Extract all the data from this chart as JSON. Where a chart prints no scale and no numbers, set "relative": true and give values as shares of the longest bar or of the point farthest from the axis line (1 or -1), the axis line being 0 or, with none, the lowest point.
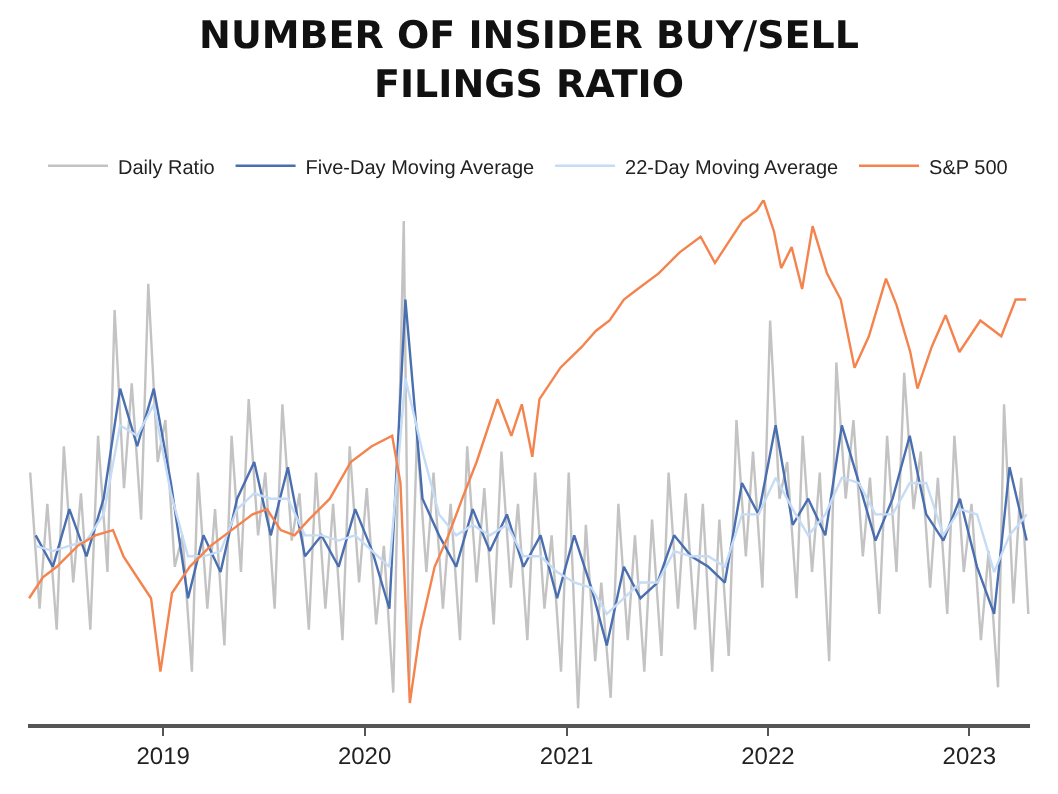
{
  "chart_data": {
    "type": "line",
    "title": "NUMBER OF INSIDER BUY/SELL FILINGS RATIO",
    "relative": true,
    "legend": "top",
    "marker": "none",
    "line_style": "solid",
    "xlim": [
      "2018-05-01",
      "2023-04-21"
    ],
    "xticks": [
      "2019",
      "2020",
      "2021",
      "2022",
      "2023"
    ],
    "x": [
      "2018-05-15",
      "2018-06-15",
      "2018-07-15",
      "2018-08-15",
      "2018-09-15",
      "2018-10-15",
      "2018-11-15",
      "2018-12-15",
      "2019-01-15",
      "2019-02-15",
      "2019-03-15",
      "2019-04-15",
      "2019-05-15",
      "2019-06-15",
      "2019-07-15",
      "2019-08-15",
      "2019-09-15",
      "2019-10-15",
      "2019-11-15",
      "2019-12-15",
      "2020-01-15",
      "2020-02-15",
      "2020-03-15",
      "2020-04-15",
      "2020-05-15",
      "2020-06-15",
      "2020-07-15",
      "2020-08-15",
      "2020-09-15",
      "2020-10-15",
      "2020-11-15",
      "2020-12-15",
      "2021-01-15",
      "2021-02-15",
      "2021-03-15",
      "2021-04-15",
      "2021-05-15",
      "2021-06-15",
      "2021-07-15",
      "2021-08-15",
      "2021-09-15",
      "2021-10-15",
      "2021-11-15",
      "2021-12-15",
      "2022-01-15",
      "2022-02-15",
      "2022-03-15",
      "2022-04-15",
      "2022-05-15",
      "2022-06-15",
      "2022-07-15",
      "2022-08-15",
      "2022-09-15",
      "2022-10-15",
      "2022-11-15",
      "2022-12-15",
      "2023-01-15",
      "2023-02-15",
      "2023-03-15",
      "2023-04-15"
    ],
    "series": [
      {
        "name": "Daily Ratio",
        "color": "#c3c3c3",
        "x": [
          "2018-05-05",
          "2018-05-22",
          "2018-06-05",
          "2018-06-22",
          "2018-07-05",
          "2018-07-22",
          "2018-08-05",
          "2018-08-22",
          "2018-09-05",
          "2018-09-22",
          "2018-10-05",
          "2018-10-22",
          "2018-11-05",
          "2018-11-22",
          "2018-12-05",
          "2018-12-22",
          "2019-01-05",
          "2019-01-22",
          "2019-02-05",
          "2019-02-22",
          "2019-03-05",
          "2019-03-22",
          "2019-04-05",
          "2019-04-22",
          "2019-05-05",
          "2019-05-22",
          "2019-06-05",
          "2019-06-22",
          "2019-07-05",
          "2019-07-22",
          "2019-08-05",
          "2019-08-22",
          "2019-09-05",
          "2019-09-22",
          "2019-10-05",
          "2019-10-22",
          "2019-11-05",
          "2019-11-22",
          "2019-12-05",
          "2019-12-22",
          "2020-01-05",
          "2020-01-22",
          "2020-02-05",
          "2020-02-22",
          "2020-03-12",
          "2020-03-22",
          "2020-04-05",
          "2020-04-22",
          "2020-05-05",
          "2020-05-22",
          "2020-06-05",
          "2020-06-22",
          "2020-07-05",
          "2020-07-22",
          "2020-08-05",
          "2020-08-22",
          "2020-09-05",
          "2020-09-22",
          "2020-10-05",
          "2020-10-22",
          "2020-11-05",
          "2020-11-22",
          "2020-12-05",
          "2020-12-22",
          "2021-01-05",
          "2021-01-22",
          "2021-02-05",
          "2021-02-22",
          "2021-03-05",
          "2021-03-22",
          "2021-04-05",
          "2021-04-22",
          "2021-05-05",
          "2021-05-22",
          "2021-06-05",
          "2021-06-22",
          "2021-07-05",
          "2021-07-22",
          "2021-08-05",
          "2021-08-22",
          "2021-09-05",
          "2021-09-22",
          "2021-10-05",
          "2021-10-22",
          "2021-11-05",
          "2021-11-22",
          "2021-12-05",
          "2021-12-22",
          "2022-01-05",
          "2022-01-22",
          "2022-02-05",
          "2022-02-22",
          "2022-03-05",
          "2022-03-22",
          "2022-04-05",
          "2022-04-22",
          "2022-05-05",
          "2022-05-22",
          "2022-06-05",
          "2022-06-22",
          "2022-07-05",
          "2022-07-22",
          "2022-08-05",
          "2022-08-22",
          "2022-09-05",
          "2022-09-22",
          "2022-10-05",
          "2022-10-22",
          "2022-11-05",
          "2022-11-22",
          "2022-12-05",
          "2022-12-22",
          "2023-01-05",
          "2023-01-22",
          "2023-02-05",
          "2023-02-22",
          "2023-03-05",
          "2023-03-22",
          "2023-04-05",
          "2023-04-18"
        ],
        "values": [
          0.48,
          0.22,
          0.42,
          0.18,
          0.53,
          0.27,
          0.44,
          0.18,
          0.55,
          0.29,
          0.79,
          0.45,
          0.65,
          0.39,
          0.84,
          0.5,
          0.58,
          0.3,
          0.36,
          0.1,
          0.48,
          0.22,
          0.41,
          0.15,
          0.55,
          0.29,
          0.62,
          0.36,
          0.48,
          0.22,
          0.61,
          0.35,
          0.44,
          0.18,
          0.48,
          0.22,
          0.42,
          0.16,
          0.53,
          0.27,
          0.45,
          0.19,
          0.34,
          0.06,
          0.96,
          0.08,
          0.55,
          0.29,
          0.48,
          0.22,
          0.42,
          0.16,
          0.53,
          0.27,
          0.45,
          0.19,
          0.52,
          0.26,
          0.42,
          0.16,
          0.48,
          0.22,
          0.36,
          0.1,
          0.48,
          0.03,
          0.38,
          0.12,
          0.27,
          0.05,
          0.42,
          0.16,
          0.36,
          0.1,
          0.39,
          0.13,
          0.48,
          0.22,
          0.44,
          0.18,
          0.42,
          0.1,
          0.39,
          0.13,
          0.58,
          0.32,
          0.52,
          0.26,
          0.77,
          0.43,
          0.5,
          0.24,
          0.55,
          0.29,
          0.48,
          0.12,
          0.69,
          0.43,
          0.58,
          0.32,
          0.47,
          0.21,
          0.55,
          0.29,
          0.67,
          0.41,
          0.52,
          0.26,
          0.47,
          0.21,
          0.55,
          0.29,
          0.42,
          0.16,
          0.33,
          0.07,
          0.61,
          0.23,
          0.47,
          0.21
        ]
      },
      {
        "name": "Five-Day Moving Average",
        "color": "#4a6fb0",
        "values": [
          0.36,
          0.3,
          0.41,
          0.32,
          0.43,
          0.64,
          0.53,
          0.64,
          0.46,
          0.24,
          0.36,
          0.29,
          0.43,
          0.5,
          0.36,
          0.49,
          0.32,
          0.36,
          0.3,
          0.41,
          0.33,
          0.22,
          0.81,
          0.43,
          0.36,
          0.3,
          0.41,
          0.33,
          0.4,
          0.3,
          0.36,
          0.24,
          0.36,
          0.26,
          0.15,
          0.3,
          0.24,
          0.27,
          0.36,
          0.32,
          0.3,
          0.27,
          0.46,
          0.4,
          0.57,
          0.38,
          0.43,
          0.36,
          0.57,
          0.46,
          0.35,
          0.43,
          0.55,
          0.4,
          0.35,
          0.43,
          0.3,
          0.21,
          0.49,
          0.35
        ]
      },
      {
        "name": "22-Day Moving Average",
        "color": "#c6dcf5",
        "values": [
          0.34,
          0.33,
          0.34,
          0.35,
          0.4,
          0.57,
          0.55,
          0.61,
          0.44,
          0.32,
          0.32,
          0.33,
          0.41,
          0.44,
          0.43,
          0.43,
          0.36,
          0.36,
          0.35,
          0.36,
          0.33,
          0.3,
          0.66,
          0.52,
          0.4,
          0.36,
          0.38,
          0.36,
          0.38,
          0.32,
          0.32,
          0.29,
          0.27,
          0.26,
          0.21,
          0.24,
          0.27,
          0.27,
          0.33,
          0.32,
          0.32,
          0.3,
          0.4,
          0.4,
          0.47,
          0.41,
          0.36,
          0.4,
          0.47,
          0.46,
          0.4,
          0.4,
          0.46,
          0.46,
          0.36,
          0.41,
          0.4,
          0.29,
          0.36,
          0.4
        ]
      },
      {
        "name": "S&P 500",
        "color": "#f4834d",
        "x": [
          "2018-05-03",
          "2018-05-28",
          "2018-06-22",
          "2018-07-30",
          "2018-08-31",
          "2018-10-02",
          "2018-10-21",
          "2018-11-21",
          "2018-12-10",
          "2018-12-27",
          "2019-01-17",
          "2019-02-18",
          "2019-03-28",
          "2019-05-05",
          "2019-06-12",
          "2019-07-08",
          "2019-08-02",
          "2019-08-27",
          "2019-09-22",
          "2019-10-30",
          "2019-12-07",
          "2020-01-14",
          "2020-02-20",
          "2020-03-06",
          "2020-03-23",
          "2020-04-11",
          "2020-05-07",
          "2020-06-01",
          "2020-06-26",
          "2020-07-22",
          "2020-08-29",
          "2020-09-23",
          "2020-10-12",
          "2020-10-31",
          "2020-11-13",
          "2020-12-21",
          "2021-01-29",
          "2021-02-23",
          "2021-03-20",
          "2021-04-15",
          "2021-05-10",
          "2021-06-17",
          "2021-07-25",
          "2021-09-01",
          "2021-09-27",
          "2021-10-22",
          "2021-11-16",
          "2021-12-12",
          "2021-12-24",
          "2022-01-12",
          "2022-01-25",
          "2022-02-13",
          "2022-03-04",
          "2022-03-23",
          "2022-04-18",
          "2022-05-13",
          "2022-06-07",
          "2022-07-03",
          "2022-08-03",
          "2022-08-22",
          "2022-09-16",
          "2022-09-29",
          "2022-10-25",
          "2022-11-19",
          "2022-12-14",
          "2023-01-21",
          "2023-02-28",
          "2023-03-26",
          "2023-04-14"
        ],
        "values": [
          0.24,
          0.28,
          0.3,
          0.34,
          0.36,
          0.37,
          0.32,
          0.27,
          0.24,
          0.1,
          0.25,
          0.3,
          0.34,
          0.37,
          0.4,
          0.41,
          0.37,
          0.36,
          0.39,
          0.43,
          0.5,
          0.53,
          0.55,
          0.46,
          0.04,
          0.18,
          0.3,
          0.36,
          0.43,
          0.5,
          0.62,
          0.55,
          0.61,
          0.51,
          0.62,
          0.68,
          0.72,
          0.75,
          0.77,
          0.81,
          0.83,
          0.86,
          0.9,
          0.93,
          0.88,
          0.92,
          0.96,
          0.98,
          1.0,
          0.94,
          0.87,
          0.91,
          0.83,
          0.95,
          0.86,
          0.81,
          0.68,
          0.74,
          0.85,
          0.8,
          0.71,
          0.64,
          0.72,
          0.78,
          0.71,
          0.77,
          0.74,
          0.81,
          0.81
        ]
      }
    ]
  }
}
